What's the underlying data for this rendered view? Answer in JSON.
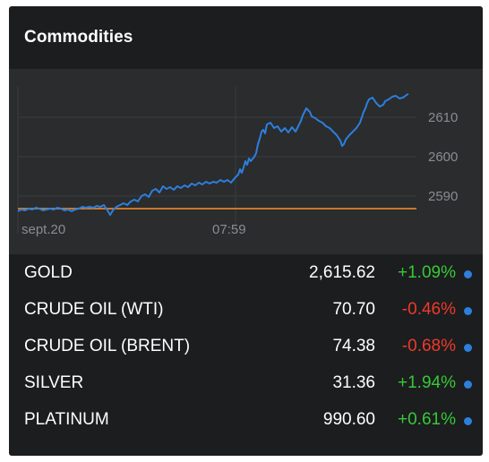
{
  "widget": {
    "title": "Commodities"
  },
  "chart": {
    "y_ticks": [
      "2610",
      "2600",
      "2590"
    ],
    "x_ticks": [
      "sept.20",
      "07:59"
    ],
    "reference_value": 2587.5,
    "line_color": "#2d7fdc",
    "reference_color": "#c8782c",
    "ylim": [
      2580,
      2620
    ]
  },
  "rows": [
    {
      "name": "GOLD",
      "price": "2,615.62",
      "change": "+1.09%",
      "direction": "up"
    },
    {
      "name": "CRUDE OIL (WTI)",
      "price": "70.70",
      "change": "-0.46%",
      "direction": "down"
    },
    {
      "name": "CRUDE OIL (BRENT)",
      "price": "74.38",
      "change": "-0.68%",
      "direction": "down"
    },
    {
      "name": "SILVER",
      "price": "31.36",
      "change": "+1.94%",
      "direction": "up"
    },
    {
      "name": "PLATINUM",
      "price": "990.60",
      "change": "+0.61%",
      "direction": "up"
    }
  ],
  "colors": {
    "up": "#35c936",
    "down": "#ee3a2a",
    "dot": "#2d7fdc"
  }
}
